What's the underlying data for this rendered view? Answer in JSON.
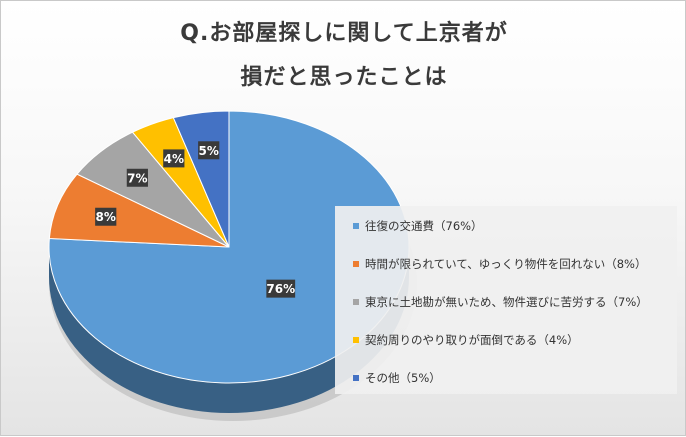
{
  "title": {
    "line1": "Q.お部屋探しに関して上京者が",
    "line2": "損だと思ったことは"
  },
  "chart_data": {
    "type": "pie",
    "slices": [
      {
        "label": "往復の交通費（76%）",
        "value": 76,
        "data_label": "76%",
        "color": "#5b9bd5"
      },
      {
        "label": "時間が限られていて、ゆっくり物件を回れない（8%）",
        "value": 8,
        "data_label": "8%",
        "color": "#ed7d31"
      },
      {
        "label": "東京に土地勘が無いため、物件選びに苦労する（7%）",
        "value": 7,
        "data_label": "7%",
        "color": "#a5a5a5"
      },
      {
        "label": "契約周りのやり取りが面倒である（4%）",
        "value": 4,
        "data_label": "4%",
        "color": "#ffc000"
      },
      {
        "label": "その他（5%）",
        "value": 5,
        "data_label": "5%",
        "color": "#4472c4"
      }
    ],
    "legend_position": "right"
  }
}
